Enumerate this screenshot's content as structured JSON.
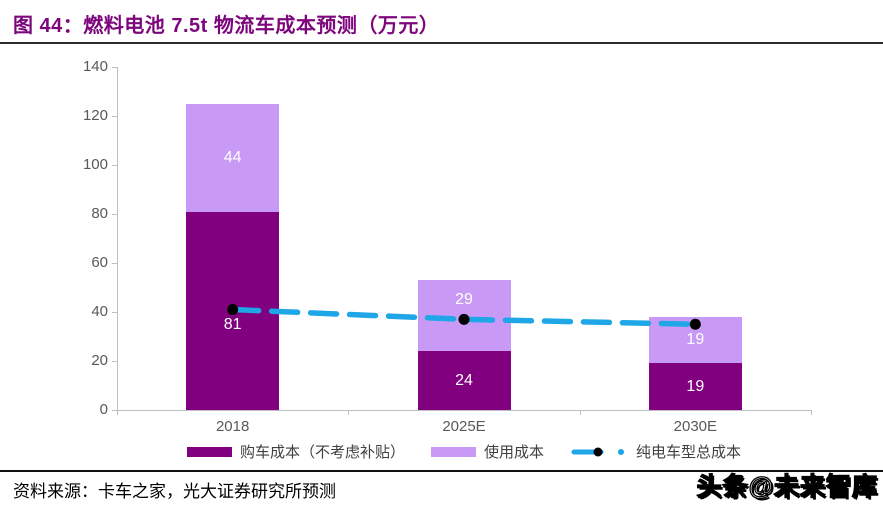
{
  "page": {
    "title": "图 44：燃料电池 7.5t 物流车成本预测（万元）",
    "source": "资料来源：卡车之家，光大证券研究所预测",
    "watermark": "头条@未来智库"
  },
  "colors": {
    "title": "#7D067D",
    "title_rule": "#2B2B2B",
    "bottom_rule": "#111111",
    "axis": "#BFBFBF",
    "tick_text": "#595959",
    "bar_label": "#FFFFFF",
    "legend_text": "#404040",
    "line_marker": "#000000"
  },
  "chart_data": {
    "type": "bar",
    "subtype": "stacked-bars-with-line",
    "categories": [
      "2018",
      "2025E",
      "2030E"
    ],
    "series": [
      {
        "key": "purchase-cost",
        "name": "购车成本（不考虑补贴）",
        "type": "bar",
        "color": "#800080",
        "values": [
          81,
          24,
          19
        ]
      },
      {
        "key": "usage-cost",
        "name": "使用成本",
        "type": "bar",
        "color": "#C99AF5",
        "values": [
          44,
          29,
          19
        ]
      },
      {
        "key": "bev-total-cost",
        "name": "纯电车型总成本",
        "type": "line",
        "color": "#1EA6E6",
        "values": [
          41,
          37,
          35
        ]
      }
    ],
    "ylim": [
      0,
      140
    ],
    "yticks": [
      0,
      20,
      40,
      60,
      80,
      100,
      120,
      140
    ],
    "grid": false,
    "legend_position": "bottom"
  }
}
